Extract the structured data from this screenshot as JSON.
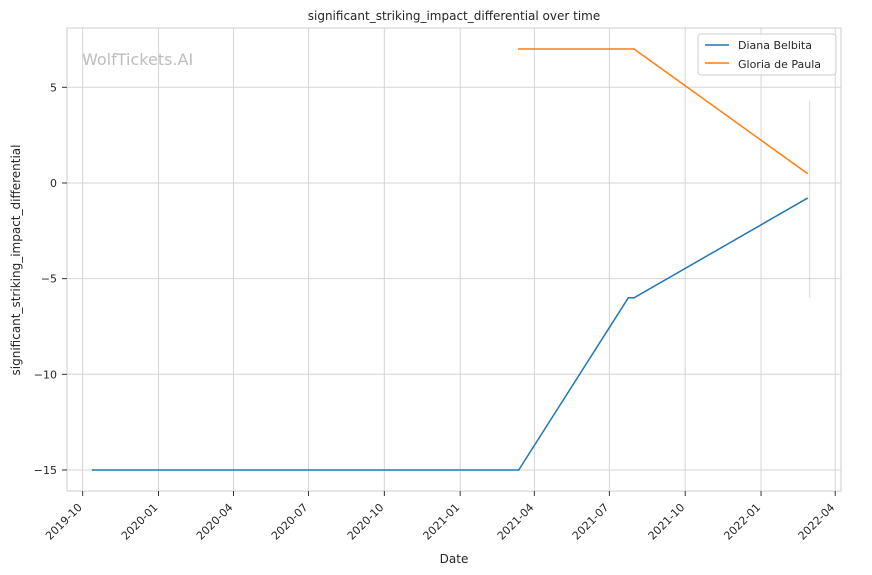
{
  "watermark": "WolfTickets.AI",
  "chart_data": {
    "type": "line",
    "title": "significant_striking_impact_differential over time",
    "xlabel": "Date",
    "ylabel": "significant_striking_impact_differential",
    "x_ticks": [
      "2019-10",
      "2020-01",
      "2020-04",
      "2020-07",
      "2020-10",
      "2021-01",
      "2021-04",
      "2021-07",
      "2021-10",
      "2022-01",
      "2022-04"
    ],
    "y_ticks": [
      5,
      0,
      -5,
      -10,
      -15
    ],
    "ylim": [
      -16.1,
      8.1
    ],
    "xlim": [
      "2019-09-12",
      "2022-04-08"
    ],
    "grid": true,
    "legend_position": "top-right",
    "series": [
      {
        "name": "Diana Belbita",
        "color": "#1f77b4",
        "points": [
          {
            "date": "2019-10-13",
            "value": -15
          },
          {
            "date": "2021-03-13",
            "value": -15
          },
          {
            "date": "2021-07-24",
            "value": -6
          },
          {
            "date": "2021-07-31",
            "value": -6
          },
          {
            "date": "2022-02-26",
            "value": -0.8
          }
        ]
      },
      {
        "name": "Gloria de Paula",
        "color": "#ff7f0e",
        "points": [
          {
            "date": "2021-03-13",
            "value": 7
          },
          {
            "date": "2021-07-31",
            "value": 7
          },
          {
            "date": "2022-02-26",
            "value": 0.5
          }
        ]
      }
    ],
    "error_bar": {
      "date": "2022-03-01",
      "low": -6,
      "high": 4.3,
      "color": "#1f77b4"
    }
  }
}
